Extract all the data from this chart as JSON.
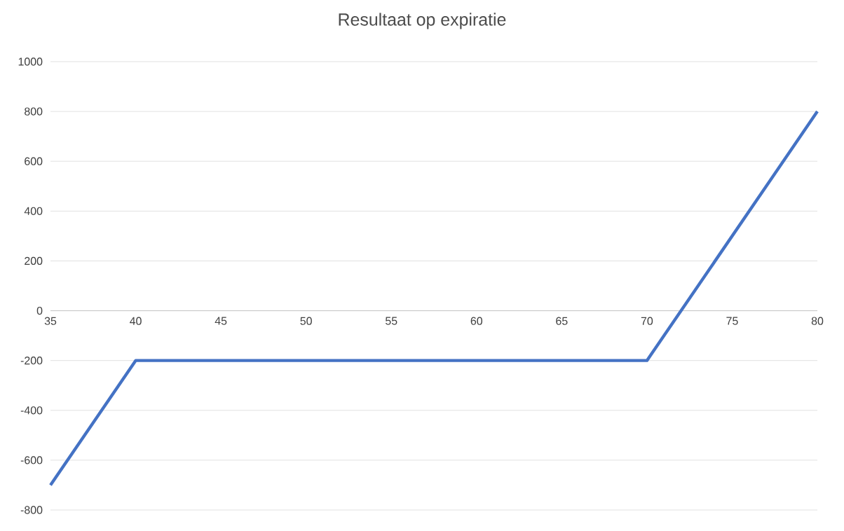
{
  "chart_data": {
    "type": "line",
    "title": "Resultaat op expiratie",
    "x": [
      35,
      40,
      70,
      80
    ],
    "series": [
      {
        "color": "#4472c4",
        "values": [
          -700,
          -200,
          -200,
          800
        ]
      }
    ],
    "xlim": [
      35,
      80
    ],
    "xticks": [
      35,
      40,
      45,
      50,
      55,
      60,
      65,
      70,
      75,
      80
    ],
    "ylim": [
      -800,
      1000
    ],
    "yticks": [
      -800,
      -600,
      -400,
      -200,
      0,
      200,
      400,
      600,
      800,
      1000
    ],
    "grid": "y",
    "line_style": "solid",
    "marker": "none"
  }
}
